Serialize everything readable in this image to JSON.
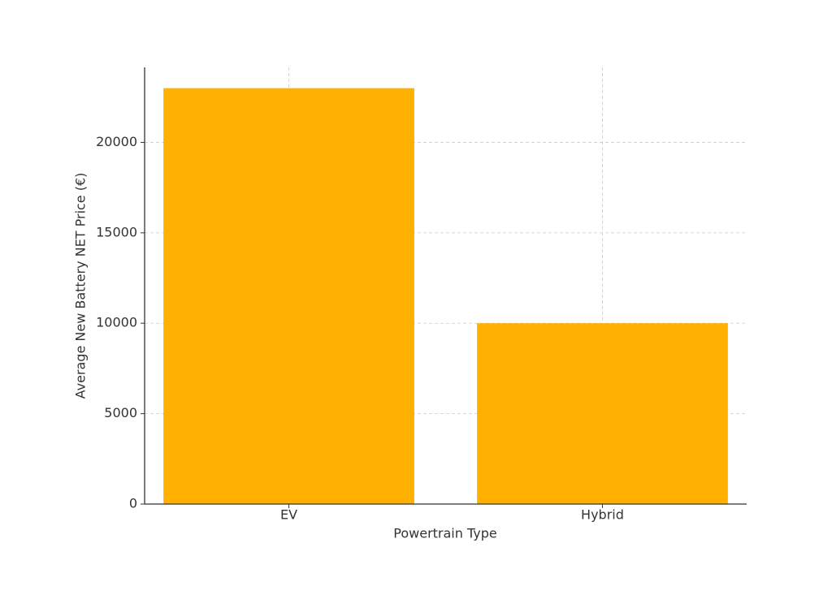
{
  "chart_data": {
    "type": "bar",
    "categories": [
      "EV",
      "Hybrid"
    ],
    "values": [
      23000,
      10000
    ],
    "color": "#ffb000",
    "xlabel": "Powertrain Type",
    "ylabel": "Average New Battery NET Price (€)",
    "ylim": [
      0,
      24150
    ],
    "yticks": [
      0,
      5000,
      10000,
      15000,
      20000
    ],
    "grid": true
  }
}
